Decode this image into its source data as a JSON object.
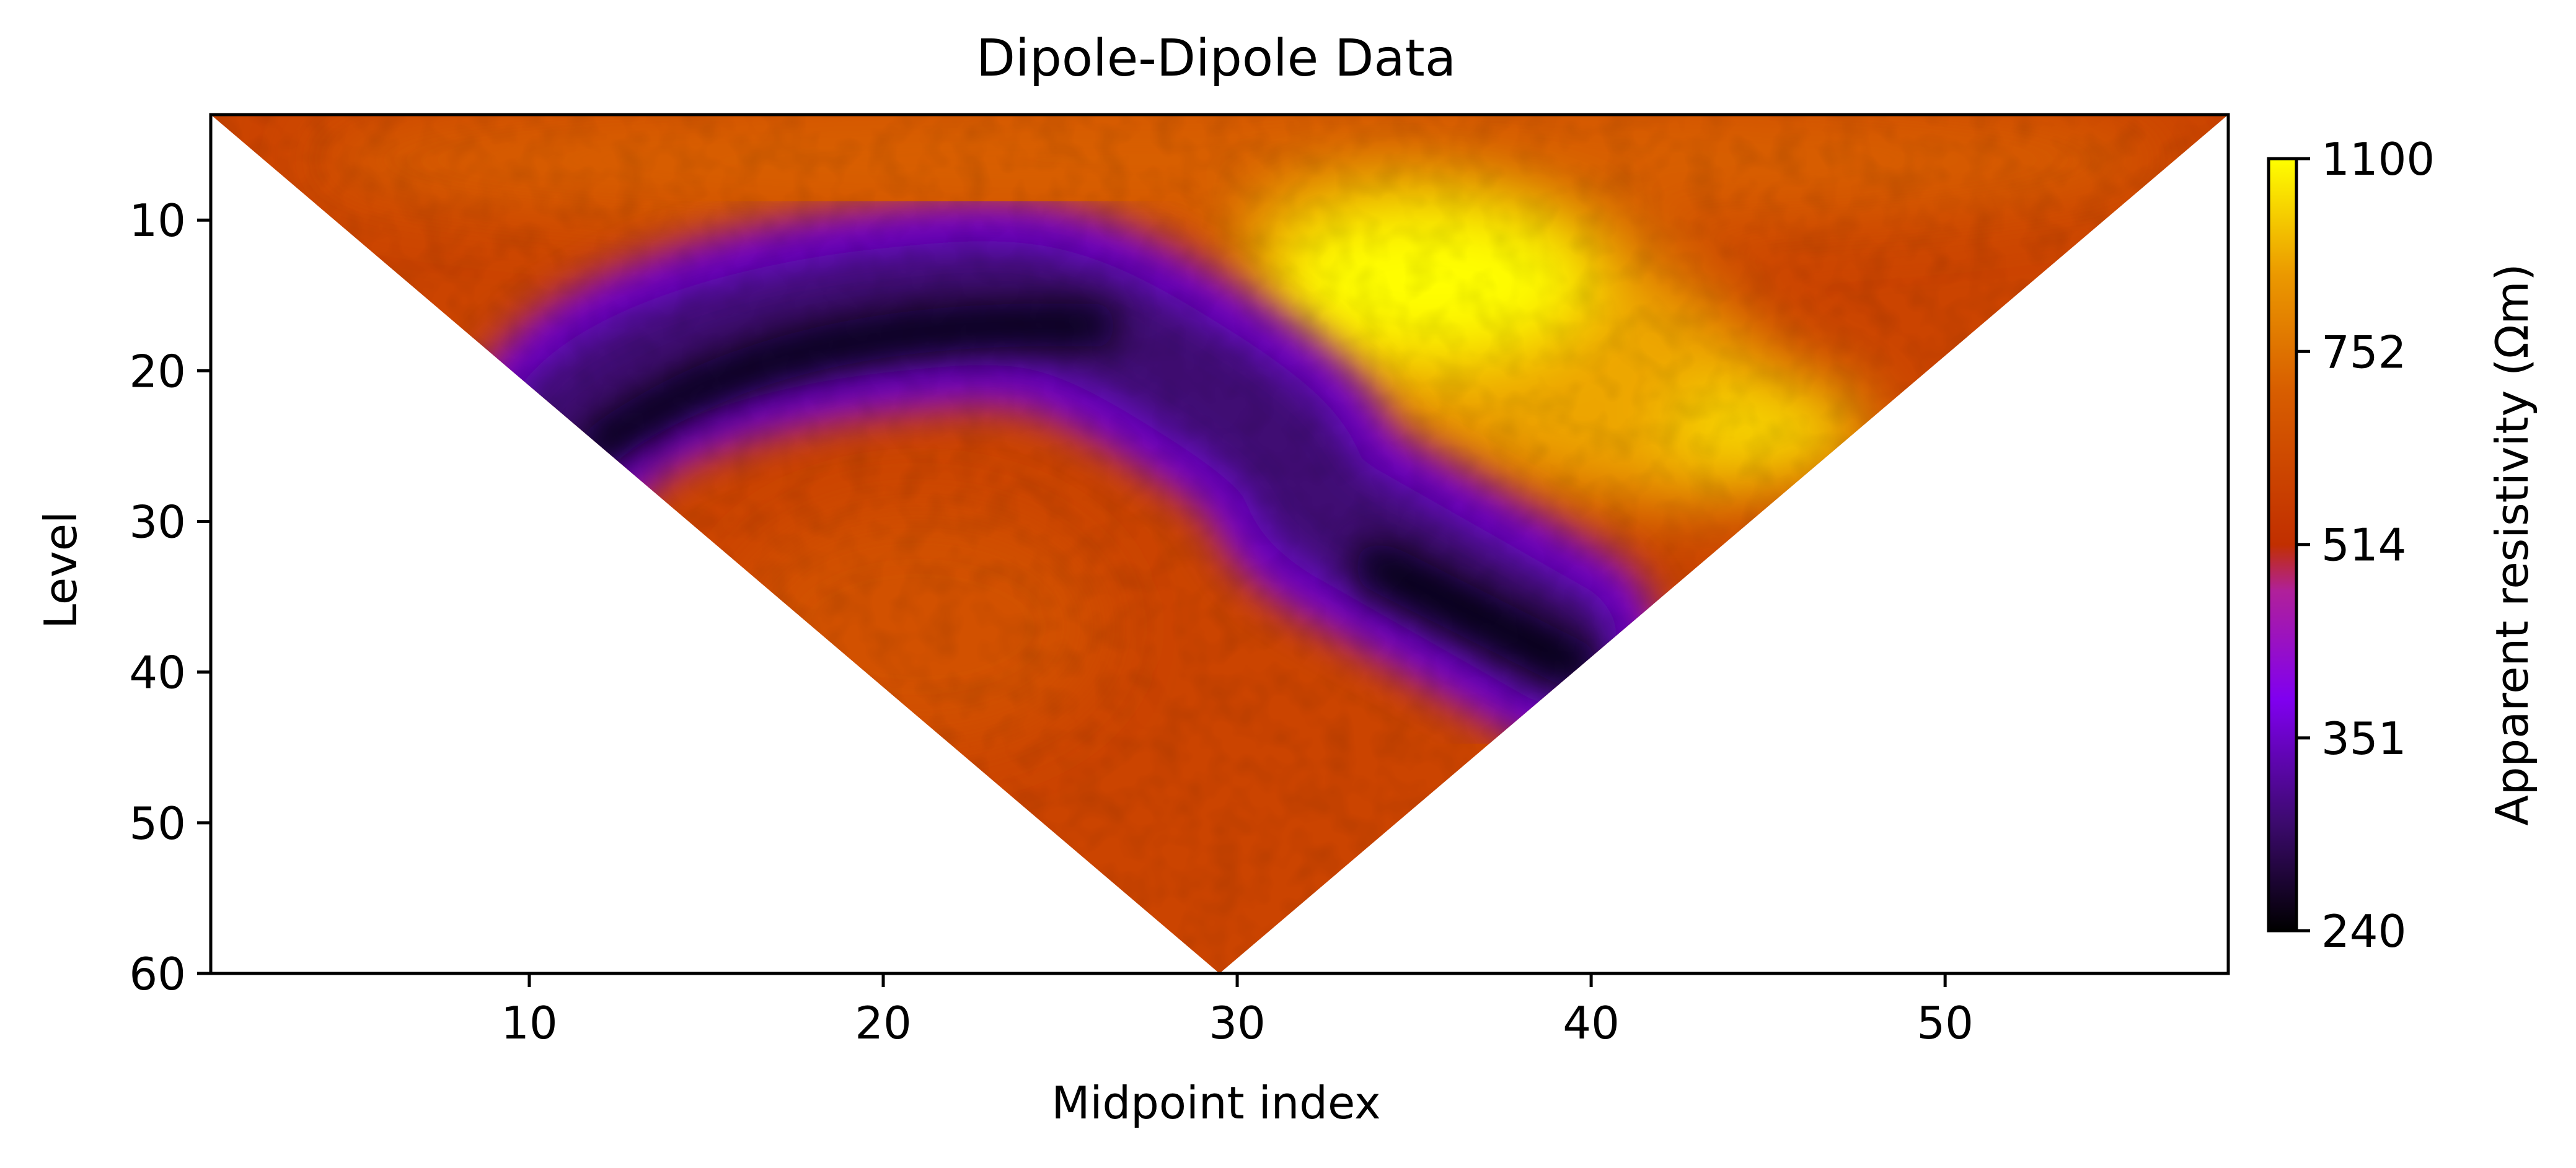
{
  "chart_data": {
    "type": "heatmap",
    "title": "Dipole-Dipole Data",
    "xlabel": "Midpoint index",
    "ylabel": "Level",
    "xlim": [
      1,
      58
    ],
    "ylim": [
      60,
      3
    ],
    "x_ticks": [
      10,
      20,
      30,
      40,
      50
    ],
    "y_ticks": [
      10,
      20,
      30,
      40,
      50,
      60
    ],
    "shape": "inverted-triangle pseudosection, apex at (29.5, 60)",
    "colorbar": {
      "label": "Apparent resistivity (Ωm)",
      "colormap": "gnuplot",
      "scale": "log",
      "range": [
        240,
        1100
      ],
      "ticks": [
        1100,
        752,
        514,
        351,
        240
      ]
    },
    "features": [
      {
        "description": "conductive arc (low resistivity)",
        "value": 260,
        "path": [
          [
            11,
            24
          ],
          [
            14,
            19
          ],
          [
            20,
            16
          ],
          [
            26,
            17
          ],
          [
            29,
            21
          ],
          [
            33,
            30
          ],
          [
            39,
            38
          ]
        ]
      },
      {
        "description": "resistive zone (high resistivity)",
        "value": 1100,
        "center": [
          35,
          14
        ]
      },
      {
        "description": "moderate body under the arc",
        "value": 640,
        "center": [
          21,
          37
        ]
      }
    ]
  }
}
